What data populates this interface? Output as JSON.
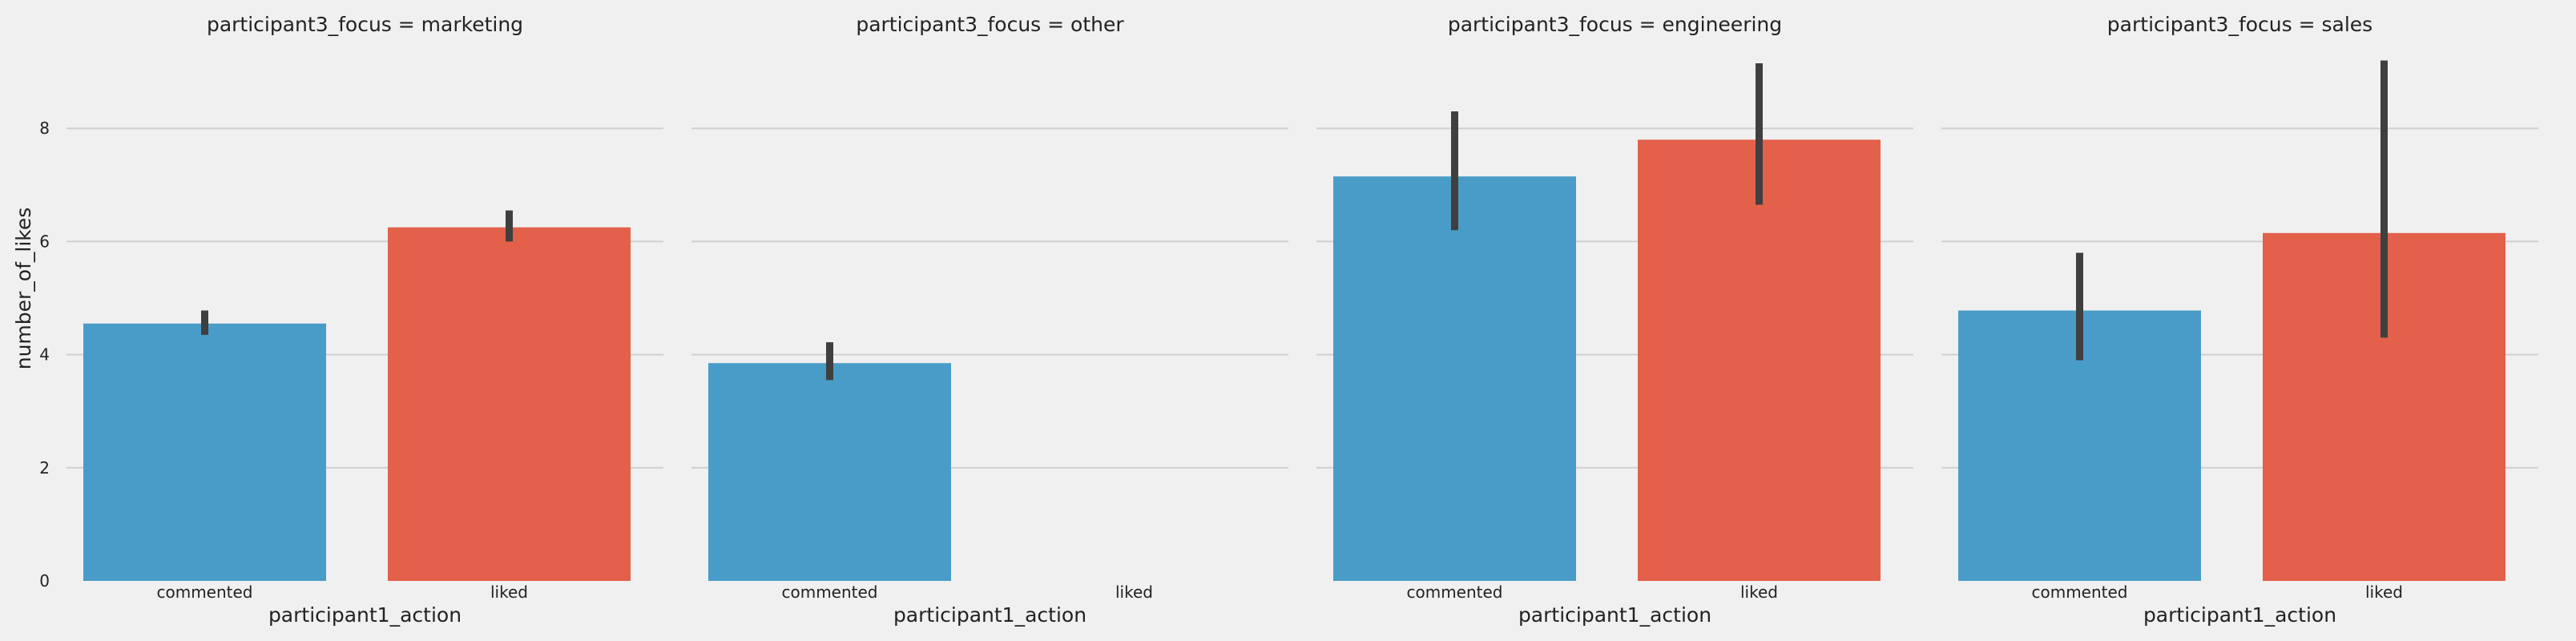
{
  "chart_data": {
    "type": "bar",
    "ylabel": "number_of_likes",
    "xlabel": "participant1_action",
    "categories": [
      "commented",
      "liked"
    ],
    "ylim": [
      0,
      9.5
    ],
    "yticks": [
      "0",
      "2",
      "4",
      "6",
      "8"
    ],
    "grid": true,
    "colors": {
      "commented": "#4a9cc8",
      "liked": "#e3604a",
      "errorbar": "#3f3f3f",
      "background": "#f0f0f0",
      "gridline": "#cfcfcf"
    },
    "panels": [
      {
        "title": "participant3_focus = marketing",
        "values": [
          4.55,
          6.25
        ],
        "ci": [
          [
            4.35,
            4.78
          ],
          [
            6.0,
            6.55
          ]
        ]
      },
      {
        "title": "participant3_focus = other",
        "values": [
          3.85,
          null
        ],
        "ci": [
          [
            3.55,
            4.22
          ],
          null
        ]
      },
      {
        "title": "participant3_focus = engineering",
        "values": [
          7.15,
          7.8
        ],
        "ci": [
          [
            6.2,
            8.3
          ],
          [
            6.65,
            9.15
          ]
        ]
      },
      {
        "title": "participant3_focus = sales",
        "values": [
          4.78,
          6.15
        ],
        "ci": [
          [
            3.9,
            5.8
          ],
          [
            4.3,
            9.2
          ]
        ]
      }
    ]
  }
}
